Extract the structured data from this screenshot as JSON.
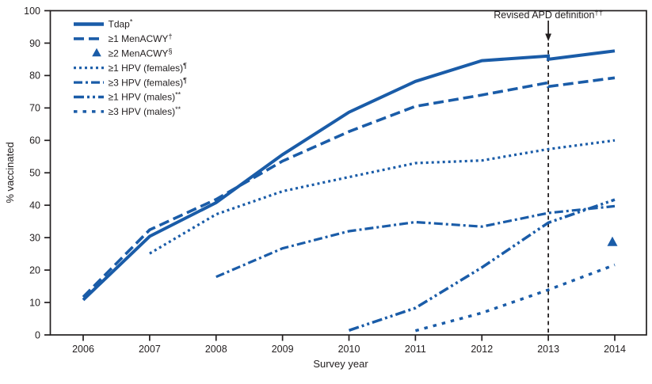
{
  "figure": {
    "background": "#ffffff"
  },
  "chart_data": {
    "type": "line",
    "title": "",
    "xlabel": "Survey year",
    "ylabel": "% vaccinated",
    "xlim": [
      2005.5,
      2014.5
    ],
    "ylim": [
      0,
      100
    ],
    "grid": false,
    "legend_position": "top-left",
    "x_ticks": [
      2006,
      2007,
      2008,
      2009,
      2010,
      2011,
      2012,
      2013,
      2014
    ],
    "y_ticks": [
      0,
      10,
      20,
      30,
      40,
      50,
      60,
      70,
      80,
      90,
      100
    ],
    "colors": {
      "line": "#1a5ca8",
      "axis": "#221e1f"
    },
    "annotation": {
      "text": "Revised APD definition",
      "sup": "††",
      "x": 2013
    },
    "series": [
      {
        "id": "tdap",
        "name": "Tdap",
        "sup": "*",
        "style": "solid",
        "points": [
          [
            2006,
            10.8
          ],
          [
            2007,
            30.4
          ],
          [
            2008,
            40.8
          ],
          [
            2009,
            55.6
          ],
          [
            2010,
            68.7
          ],
          [
            2011,
            78.2
          ],
          [
            2012,
            84.6
          ],
          [
            2013,
            86.0
          ],
          [
            2013,
            85.0
          ],
          [
            2014,
            87.6
          ]
        ]
      },
      {
        "id": "menacwy-1plus",
        "name": "≥1 MenACWY",
        "sup": "†",
        "style": "dash",
        "points": [
          [
            2006,
            11.7
          ],
          [
            2007,
            32.4
          ],
          [
            2008,
            41.8
          ],
          [
            2009,
            53.6
          ],
          [
            2010,
            62.7
          ],
          [
            2011,
            70.5
          ],
          [
            2012,
            74.0
          ],
          [
            2013,
            77.8
          ],
          [
            2013,
            76.6
          ],
          [
            2014,
            79.3
          ]
        ]
      },
      {
        "id": "menacwy-2plus",
        "name": "≥2 MenACWY",
        "sup": "§",
        "style": "triangle",
        "points": [
          [
            2014,
            28.5
          ]
        ]
      },
      {
        "id": "hpv-1plus-females",
        "name": "≥1 HPV (females)",
        "sup": "¶",
        "style": "dot",
        "points": [
          [
            2007,
            25.1
          ],
          [
            2008,
            37.2
          ],
          [
            2009,
            44.3
          ],
          [
            2010,
            48.7
          ],
          [
            2011,
            53.0
          ],
          [
            2012,
            53.8
          ],
          [
            2013,
            57.3
          ],
          [
            2014,
            60.0
          ]
        ]
      },
      {
        "id": "hpv-3plus-females",
        "name": "≥3 HPV (females)",
        "sup": "¶",
        "style": "dashdot",
        "points": [
          [
            2008,
            17.9
          ],
          [
            2009,
            26.7
          ],
          [
            2010,
            32.0
          ],
          [
            2011,
            34.8
          ],
          [
            2012,
            33.4
          ],
          [
            2013,
            37.6
          ],
          [
            2014,
            39.7
          ]
        ]
      },
      {
        "id": "hpv-1plus-males",
        "name": "≥1 HPV (males)",
        "sup": "**",
        "style": "dashdotdot",
        "points": [
          [
            2010,
            1.4
          ],
          [
            2011,
            8.3
          ],
          [
            2012,
            20.8
          ],
          [
            2013,
            34.6
          ],
          [
            2014,
            41.7
          ]
        ]
      },
      {
        "id": "hpv-3plus-males",
        "name": "≥3 HPV (males)",
        "sup": "**",
        "style": "sparsedash",
        "points": [
          [
            2011,
            1.3
          ],
          [
            2012,
            6.8
          ],
          [
            2013,
            13.9
          ],
          [
            2014,
            21.6
          ]
        ]
      }
    ]
  }
}
